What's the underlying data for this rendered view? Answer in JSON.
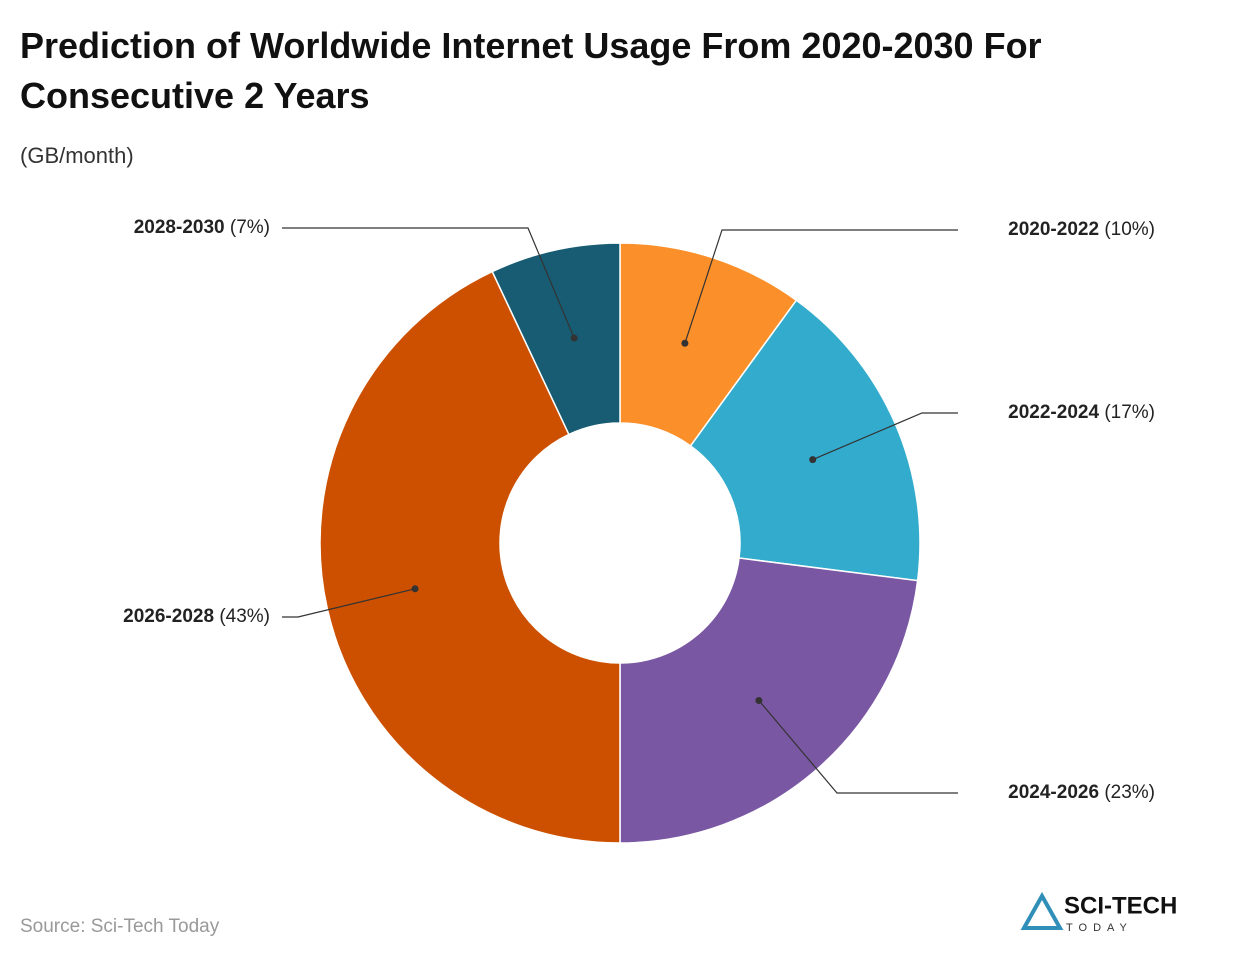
{
  "chart_data": {
    "type": "donut",
    "title": "Prediction of Worldwide Internet Usage From 2020-2030 For Consecutive 2 Years",
    "subtitle": "(GB/month)",
    "categories": [
      "2020-2022",
      "2022-2024",
      "2024-2026",
      "2026-2028",
      "2028-2030"
    ],
    "values": [
      10,
      17,
      23,
      43,
      7
    ],
    "value_labels": [
      "(10%)",
      "(17%)",
      "(23%)",
      "(43%)",
      "(7%)"
    ],
    "colors": [
      "#fb8f2a",
      "#33abcc",
      "#7a57a3",
      "#cc5000",
      "#175c72"
    ],
    "source": "Source: Sci-Tech Today"
  },
  "logo": {
    "name": "SCI-TECH",
    "tagline": "TODAY"
  }
}
